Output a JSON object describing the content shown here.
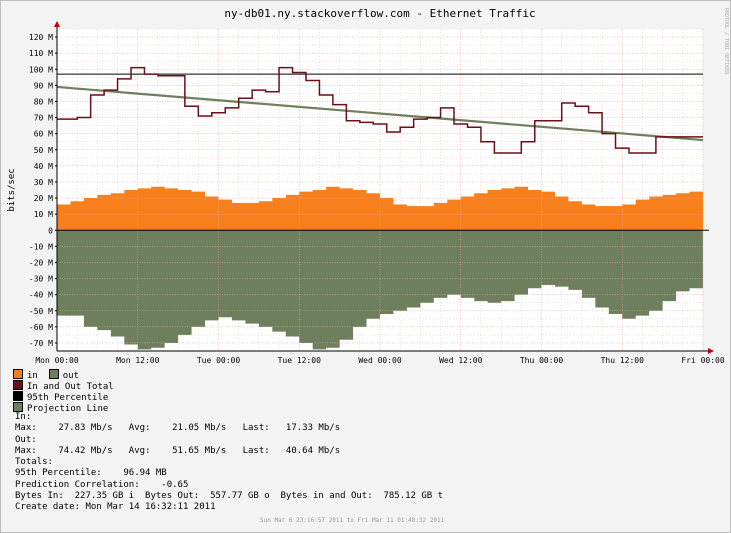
{
  "chart_data": {
    "type": "area",
    "title": "ny-db01.ny.stackoverflow.com - Ethernet Traffic",
    "ylabel": "bits/sec",
    "ylim": [
      -75,
      125
    ],
    "y_ticks": [
      {
        "v": 120,
        "label": "120 M"
      },
      {
        "v": 110,
        "label": "110 M"
      },
      {
        "v": 100,
        "label": "100 M"
      },
      {
        "v": 90,
        "label": "90 M"
      },
      {
        "v": 80,
        "label": "80 M"
      },
      {
        "v": 70,
        "label": "70 M"
      },
      {
        "v": 60,
        "label": "60 M"
      },
      {
        "v": 50,
        "label": "50 M"
      },
      {
        "v": 40,
        "label": "40 M"
      },
      {
        "v": 30,
        "label": "30 M"
      },
      {
        "v": 20,
        "label": "20 M"
      },
      {
        "v": 10,
        "label": "10 M"
      },
      {
        "v": 0,
        "label": "0"
      },
      {
        "v": -10,
        "label": "-10 M"
      },
      {
        "v": -20,
        "label": "-20 M"
      },
      {
        "v": -30,
        "label": "-30 M"
      },
      {
        "v": -40,
        "label": "-40 M"
      },
      {
        "v": -50,
        "label": "-50 M"
      },
      {
        "v": -60,
        "label": "-60 M"
      },
      {
        "v": -70,
        "label": "-70 M"
      }
    ],
    "x_ticks": [
      "Mon 00:00",
      "Mon 12:00",
      "Tue 00:00",
      "Tue 12:00",
      "Wed 00:00",
      "Wed 12:00",
      "Thu 00:00",
      "Thu 12:00",
      "Fri 00:00"
    ],
    "x_unit": "hours since Mon 00:00",
    "x_range": [
      0,
      96
    ],
    "grid": true,
    "series": [
      {
        "name": "in",
        "kind": "area",
        "color": "#f77f1c",
        "x": [
          0,
          2,
          4,
          6,
          8,
          10,
          12,
          14,
          16,
          18,
          20,
          22,
          24,
          26,
          28,
          30,
          32,
          34,
          36,
          38,
          40,
          42,
          44,
          46,
          48,
          50,
          52,
          54,
          56,
          58,
          60,
          62,
          64,
          66,
          68,
          70,
          72,
          74,
          76,
          78,
          80,
          82,
          84,
          86,
          88,
          90,
          92,
          94,
          96
        ],
        "y": [
          16,
          18,
          20,
          22,
          23,
          25,
          26,
          27,
          26,
          25,
          24,
          21,
          19,
          17,
          17,
          18,
          20,
          22,
          24,
          25,
          27,
          26,
          25,
          23,
          20,
          16,
          15,
          15,
          17,
          19,
          21,
          23,
          25,
          26,
          27,
          25,
          24,
          21,
          18,
          16,
          15,
          15,
          16,
          19,
          21,
          22,
          23,
          24,
          26
        ]
      },
      {
        "name": "out",
        "kind": "area",
        "color": "#6e7f5e",
        "x": [
          0,
          2,
          4,
          6,
          8,
          10,
          12,
          14,
          16,
          18,
          20,
          22,
          24,
          26,
          28,
          30,
          32,
          34,
          36,
          38,
          40,
          42,
          44,
          46,
          48,
          50,
          52,
          54,
          56,
          58,
          60,
          62,
          64,
          66,
          68,
          70,
          72,
          74,
          76,
          78,
          80,
          82,
          84,
          86,
          88,
          90,
          92,
          94,
          96
        ],
        "y": [
          -53,
          -53,
          -60,
          -62,
          -66,
          -71,
          -74,
          -73,
          -70,
          -65,
          -60,
          -56,
          -54,
          -56,
          -58,
          -60,
          -63,
          -66,
          -70,
          -74,
          -73,
          -68,
          -60,
          -55,
          -52,
          -50,
          -48,
          -45,
          -42,
          -40,
          -42,
          -44,
          -45,
          -44,
          -40,
          -36,
          -34,
          -35,
          -37,
          -42,
          -48,
          -52,
          -55,
          -53,
          -50,
          -44,
          -38,
          -36,
          -34
        ]
      },
      {
        "name": "In and Out Total",
        "kind": "step",
        "color": "#6b0f1a",
        "x": [
          0,
          3,
          5,
          7,
          9,
          11,
          13,
          15,
          17,
          19,
          21,
          23,
          25,
          27,
          29,
          31,
          33,
          35,
          37,
          39,
          41,
          43,
          45,
          47,
          49,
          51,
          53,
          55,
          57,
          59,
          61,
          63,
          65,
          67,
          69,
          71,
          73,
          75,
          77,
          79,
          81,
          83,
          85,
          87,
          89,
          91,
          93,
          95,
          96
        ],
        "y": [
          69,
          70,
          84,
          87,
          94,
          101,
          97,
          96,
          96,
          77,
          71,
          73,
          76,
          82,
          87,
          86,
          101,
          98,
          93,
          84,
          78,
          68,
          67,
          66,
          61,
          64,
          69,
          70,
          76,
          66,
          64,
          55,
          48,
          48,
          55,
          68,
          68,
          79,
          77,
          73,
          60,
          51,
          48,
          48,
          58,
          58,
          58,
          58,
          58
        ]
      },
      {
        "name": "95th Percentile",
        "kind": "hline",
        "color": "#000000",
        "value": 96.94
      },
      {
        "name": "Projection Line",
        "kind": "line",
        "color": "#6e7f5e",
        "x": [
          0,
          96
        ],
        "y": [
          89,
          56
        ]
      }
    ]
  },
  "legend": [
    {
      "label": "in",
      "color": "#f77f1c"
    },
    {
      "label": "out",
      "color": "#6e7f5e"
    },
    {
      "label": "In and Out Total",
      "color": "#6b0f1a"
    },
    {
      "label": "95th Percentile",
      "color": "#000000"
    },
    {
      "label": "Projection Line",
      "color": "#6e7f5e"
    }
  ],
  "stats": {
    "in_header": "In:",
    "in_line": "Max:    27.83 Mb/s   Avg:    21.05 Mb/s   Last:   17.33 Mb/s",
    "out_header": "Out:",
    "out_line": "Max:    74.42 Mb/s   Avg:    51.65 Mb/s   Last:   40.64 Mb/s",
    "totals_header": "Totals:",
    "percentile_line": "95th Percentile:    96.94 MB",
    "correlation_line": "Prediction Correlation:    -0.65",
    "bytes_line": "Bytes In:  227.35 GB i  Bytes Out:  557.77 GB o  Bytes in and Out:  785.12 GB t",
    "create_line": "Create date: Mon Mar 14 16:32:11 2011"
  },
  "timespan": "Sun Mar  6 23:16:57 2011 to Fri Mar 11 01:48:32 2011",
  "side_label": "RRDTOOL / TOBI OETIKER"
}
